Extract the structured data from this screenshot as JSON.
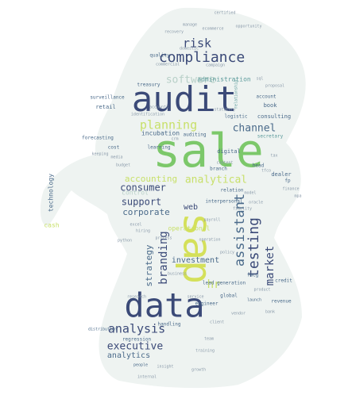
{
  "palette": {
    "navy": "#3b4a78",
    "slate": "#4a6a8a",
    "teal": "#5a9a9a",
    "green": "#7cc86a",
    "lime": "#c8e06a",
    "yellow": "#d4e05a",
    "pale": "#b8d0c8",
    "grey": "#8a9aaa"
  },
  "words": [
    {
      "text": "sale",
      "color": "green"
    },
    {
      "text": "sap",
      "color": "yellow"
    },
    {
      "text": "audit",
      "color": "navy"
    },
    {
      "text": "data",
      "color": "navy"
    },
    {
      "text": "compliance",
      "color": "navy"
    },
    {
      "text": "risk",
      "color": "navy"
    },
    {
      "text": "planning",
      "color": "lime"
    },
    {
      "text": "software",
      "color": "pale"
    },
    {
      "text": "channel",
      "color": "slate"
    },
    {
      "text": "analytical",
      "color": "lime"
    },
    {
      "text": "accounting",
      "color": "lime"
    },
    {
      "text": "consumer",
      "color": "navy"
    },
    {
      "text": "support",
      "color": "navy"
    },
    {
      "text": "corporate",
      "color": "slate"
    },
    {
      "text": "assistant",
      "color": "slate"
    },
    {
      "text": "testing",
      "color": "navy"
    },
    {
      "text": "market",
      "color": "navy"
    },
    {
      "text": "branding",
      "color": "navy"
    },
    {
      "text": "strategy",
      "color": "slate"
    },
    {
      "text": "investment",
      "color": "slate"
    },
    {
      "text": "analysis",
      "color": "navy"
    },
    {
      "text": "executive",
      "color": "navy"
    },
    {
      "text": "analytics",
      "color": "slate"
    },
    {
      "text": "hr",
      "color": "lime"
    },
    {
      "text": "web",
      "color": "navy"
    },
    {
      "text": "technology",
      "color": "slate"
    },
    {
      "text": "incubation",
      "color": "slate"
    },
    {
      "text": "administration",
      "color": "teal"
    },
    {
      "text": "quality",
      "color": "slate"
    },
    {
      "text": "treasury",
      "color": "slate"
    },
    {
      "text": "retail",
      "color": "slate"
    },
    {
      "text": "book",
      "color": "slate"
    },
    {
      "text": "forecasting",
      "color": "slate"
    },
    {
      "text": "consulting",
      "color": "slate"
    },
    {
      "text": "logistic",
      "color": "slate"
    },
    {
      "text": "auditing",
      "color": "slate"
    },
    {
      "text": "digital",
      "color": "slate"
    },
    {
      "text": "branch",
      "color": "slate"
    },
    {
      "text": "learning",
      "color": "slate"
    },
    {
      "text": "dealer",
      "color": "slate"
    },
    {
      "text": "head",
      "color": "slate"
    },
    {
      "text": "secretary",
      "color": "teal"
    },
    {
      "text": "cost",
      "color": "slate"
    },
    {
      "text": "surveillance",
      "color": "slate"
    },
    {
      "text": "control",
      "color": "pale"
    },
    {
      "text": "relation",
      "color": "slate"
    },
    {
      "text": "interpersonal",
      "color": "slate"
    },
    {
      "text": "fmcg",
      "color": "slate"
    },
    {
      "text": "credit",
      "color": "slate"
    },
    {
      "text": "engineer",
      "color": "slate"
    },
    {
      "text": "global",
      "color": "slate"
    },
    {
      "text": "handling",
      "color": "slate"
    },
    {
      "text": "regression",
      "color": "slate"
    },
    {
      "text": "distribution",
      "color": "slate"
    },
    {
      "text": "people",
      "color": "slate"
    },
    {
      "text": "account",
      "color": "slate"
    },
    {
      "text": "fp",
      "color": "slate"
    },
    {
      "text": "cash",
      "color": "lime"
    },
    {
      "text": "operational",
      "color": "lime"
    },
    {
      "text": "revenue",
      "color": "slate"
    },
    {
      "text": "launch",
      "color": "slate"
    },
    {
      "text": "lead generation",
      "color": "slate"
    },
    {
      "text": "certified",
      "color": "grey"
    },
    {
      "text": "opportunity",
      "color": "grey"
    },
    {
      "text": "relationship",
      "color": "teal"
    },
    {
      "text": "keeping",
      "color": "grey"
    },
    {
      "text": "mpa",
      "color": "grey"
    },
    {
      "text": "content",
      "color": "grey"
    },
    {
      "text": "tfco",
      "color": "grey"
    },
    {
      "text": "proposal",
      "color": "grey"
    },
    {
      "text": "accounts",
      "color": "grey"
    },
    {
      "text": "identification",
      "color": "grey"
    },
    {
      "text": "recovery",
      "color": "grey"
    },
    {
      "text": "manage",
      "color": "grey"
    },
    {
      "text": "internal",
      "color": "grey"
    },
    {
      "text": "bank",
      "color": "grey"
    },
    {
      "text": "hiring",
      "color": "grey"
    },
    {
      "text": "fidelity",
      "color": "grey"
    },
    {
      "text": "campaign",
      "color": "grey"
    },
    {
      "text": "crm",
      "color": "grey"
    },
    {
      "text": "sql",
      "color": "grey"
    },
    {
      "text": "python",
      "color": "grey"
    },
    {
      "text": "excel",
      "color": "grey"
    },
    {
      "text": "domestic",
      "color": "grey"
    },
    {
      "text": "ecommerce",
      "color": "grey"
    },
    {
      "text": "commercial",
      "color": "grey"
    },
    {
      "text": "statutory",
      "color": "grey"
    },
    {
      "text": "payroll",
      "color": "grey"
    },
    {
      "text": "tax",
      "color": "grey"
    },
    {
      "text": "model",
      "color": "grey"
    },
    {
      "text": "training",
      "color": "grey"
    },
    {
      "text": "vendor",
      "color": "grey"
    },
    {
      "text": "product",
      "color": "grey"
    },
    {
      "text": "process",
      "color": "grey"
    },
    {
      "text": "business",
      "color": "grey"
    },
    {
      "text": "client",
      "color": "grey"
    },
    {
      "text": "growth",
      "color": "grey"
    },
    {
      "text": "insight",
      "color": "grey"
    },
    {
      "text": "media",
      "color": "grey"
    },
    {
      "text": "research",
      "color": "grey"
    },
    {
      "text": "policy",
      "color": "grey"
    },
    {
      "text": "budget",
      "color": "grey"
    },
    {
      "text": "finance",
      "color": "grey"
    },
    {
      "text": "oracle",
      "color": "grey"
    },
    {
      "text": "service",
      "color": "grey"
    },
    {
      "text": "team",
      "color": "grey"
    },
    {
      "text": "operation",
      "color": "grey"
    }
  ]
}
